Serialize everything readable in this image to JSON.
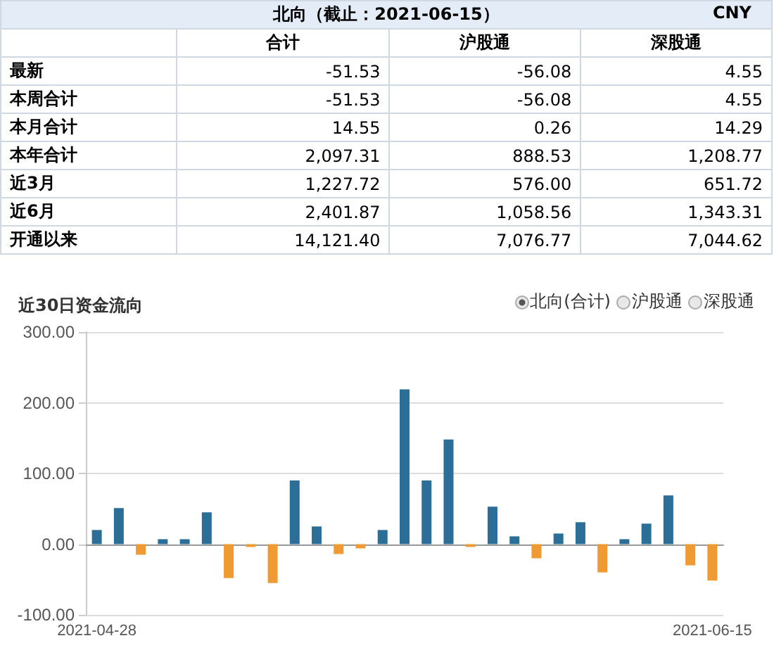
{
  "chart_data": [
    {
      "type": "other",
      "title": "北向（截止：2021-06-15）",
      "annotations": [
        "CNY"
      ],
      "categories": [
        "合计",
        "沪股通",
        "深股通"
      ],
      "y_categories": [
        "最新",
        "本周合计",
        "本月合计",
        "本年合计",
        "近3月",
        "近6月",
        "开通以来"
      ],
      "cell_labels": [
        [
          "-51.53",
          "-56.08",
          "4.55"
        ],
        [
          "-51.53",
          "-56.08",
          "4.55"
        ],
        [
          "14.55",
          "0.26",
          "14.29"
        ],
        [
          "2,097.31",
          "888.53",
          "1,208.77"
        ],
        [
          "1,227.72",
          "576.00",
          "651.72"
        ],
        [
          "2,401.87",
          "1,058.56",
          "1,343.31"
        ],
        [
          "14,121.40",
          "7,076.77",
          "7,044.62"
        ]
      ]
    },
    {
      "type": "bar",
      "title": "近30日资金流向",
      "annotations": [
        "北向(合计)",
        "沪股通",
        "深股通"
      ],
      "categories": [
        "2021-04-28",
        null,
        null,
        null,
        null,
        null,
        null,
        null,
        null,
        null,
        null,
        null,
        null,
        null,
        null,
        null,
        null,
        null,
        null,
        null,
        null,
        null,
        null,
        null,
        null,
        null,
        null,
        null,
        "2021-06-15"
      ],
      "values": [
        20,
        51,
        -15,
        7,
        7,
        45,
        -48,
        -4,
        -55,
        90,
        25,
        -14,
        -6,
        20,
        219,
        90,
        148,
        -4,
        53,
        11,
        -20,
        15,
        31,
        -40,
        7,
        29,
        69,
        -30,
        -51.53
      ],
      "colors": [
        "#2b6f98",
        "#2b6f98",
        "#ef9a33",
        "#2b6f98",
        "#2b6f98",
        "#2b6f98",
        "#ef9a33",
        "#ef9a33",
        "#ef9a33",
        "#2b6f98",
        "#2b6f98",
        "#ef9a33",
        "#ef9a33",
        "#2b6f98",
        "#2b6f98",
        "#2b6f98",
        "#2b6f98",
        "#ef9a33",
        "#2b6f98",
        "#2b6f98",
        "#ef9a33",
        "#2b6f98",
        "#2b6f98",
        "#ef9a33",
        "#2b6f98",
        "#2b6f98",
        "#2b6f98",
        "#ef9a33",
        "#ef9a33"
      ],
      "ylim": [
        -100,
        300
      ],
      "yticks": [
        {
          "value": -100,
          "label": "-100.00"
        },
        {
          "value": 0,
          "label": "0.00"
        },
        {
          "value": 100,
          "label": "100.00"
        },
        {
          "value": 200,
          "label": "200.00"
        },
        {
          "value": 300,
          "label": "300.00"
        }
      ],
      "grid": "y"
    }
  ]
}
